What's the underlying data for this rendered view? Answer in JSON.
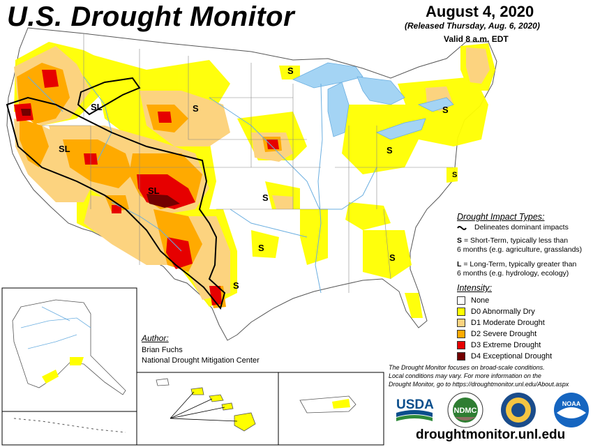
{
  "header": {
    "title": "U.S. Drought Monitor",
    "date": "August 4, 2020",
    "released": "(Released Thursday, Aug. 6, 2020)",
    "valid": "Valid 8 a.m. EDT"
  },
  "impact": {
    "title": "Drought Impact Types:",
    "delineates": "Delineates dominant impacts",
    "s_key": "S",
    "s_text": "= Short-Term, typically less than",
    "s_text2": "6 months (e.g. agriculture, grasslands)",
    "l_key": "L",
    "l_text": "= Long-Term, typically greater than",
    "l_text2": "6 months (e.g. hydrology, ecology)"
  },
  "intensity": {
    "title": "Intensity:",
    "items": [
      {
        "label": "None",
        "color": "#ffffff"
      },
      {
        "label": "D0 Abnormally Dry",
        "color": "#ffff00"
      },
      {
        "label": "D1 Moderate Drought",
        "color": "#fcd37f"
      },
      {
        "label": "D2 Severe Drought",
        "color": "#ffaa00"
      },
      {
        "label": "D3 Extreme Drought",
        "color": "#e60000"
      },
      {
        "label": "D4 Exceptional Drought",
        "color": "#730000"
      }
    ]
  },
  "author": {
    "title": "Author:",
    "name": "Brian Fuchs",
    "org": "National Drought Mitigation Center"
  },
  "disclaimer": [
    "The Drought Monitor focuses on broad-scale conditions.",
    "Local conditions may vary. For more information on the",
    "Drought Monitor, go to https://droughtmonitor.unl.edu/About.aspx"
  ],
  "url": "droughtmonitor.unl.edu",
  "map_labels": {
    "sl": "SL",
    "s": "S"
  },
  "logos": {
    "usda": "USDA",
    "ndmc": "NDMC",
    "noaa": "NOAA"
  },
  "colors": {
    "water": "#a4d4f4",
    "river": "#6aaee0",
    "boundary": "#000000"
  }
}
